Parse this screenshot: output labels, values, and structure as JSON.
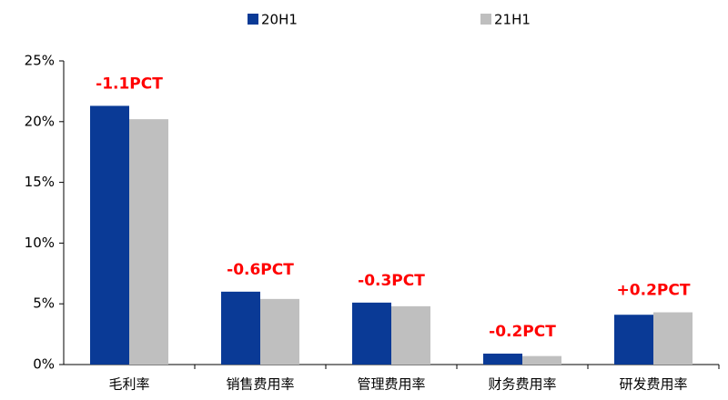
{
  "chart_data": {
    "type": "bar",
    "categories": [
      "毛利率",
      "销售费用率",
      "管理费用率",
      "财务费用率",
      "研发费用率"
    ],
    "series": [
      {
        "name": "20H1",
        "color": "#0a3a96",
        "values": [
          21.3,
          6.0,
          5.1,
          0.9,
          4.1
        ]
      },
      {
        "name": "21H1",
        "color": "#bfbfbf",
        "values": [
          20.2,
          5.4,
          4.8,
          0.7,
          4.3
        ]
      }
    ],
    "annotations": [
      "-1.1PCT",
      "-0.6PCT",
      "-0.3PCT",
      "-0.2PCT",
      "+0.2PCT"
    ],
    "annotation_color": "#ff0000",
    "ylim": [
      0,
      25
    ],
    "yticks": [
      {
        "value": 0,
        "label": "0%"
      },
      {
        "value": 5,
        "label": "5%"
      },
      {
        "value": 10,
        "label": "10%"
      },
      {
        "value": 15,
        "label": "15%"
      },
      {
        "value": 20,
        "label": "20%"
      },
      {
        "value": 25,
        "label": "25%"
      }
    ],
    "legend": "top"
  }
}
